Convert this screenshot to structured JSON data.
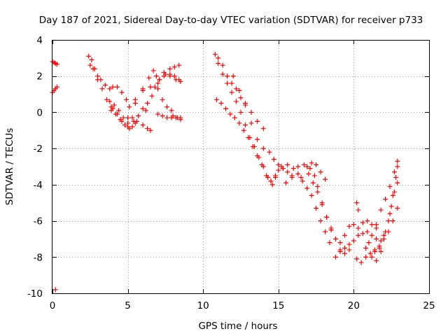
{
  "chart_data": {
    "type": "scatter",
    "title": "Day 187 of 2021, Sidereal Day-to-day VTEC variation (SDTVAR) for receiver p733",
    "xlabel": "GPS time / hours",
    "ylabel": "SDTVAR / TECUs",
    "xlim": [
      0,
      25
    ],
    "ylim": [
      -10,
      4
    ],
    "x_ticks": [
      0,
      5,
      10,
      15,
      20,
      25
    ],
    "y_ticks": [
      -10,
      -8,
      -6,
      -4,
      -2,
      0,
      2,
      4
    ],
    "grid": true,
    "marker": "plus",
    "color": "#ff0000",
    "tracks": [
      [
        [
          0.0,
          2.8
        ],
        [
          0.1,
          2.75
        ],
        [
          0.2,
          2.7
        ],
        [
          0.3,
          2.65
        ]
      ],
      [
        [
          0.0,
          1.1
        ],
        [
          0.1,
          1.2
        ],
        [
          0.2,
          1.3
        ],
        [
          0.3,
          1.4
        ]
      ],
      [
        [
          0.2,
          -9.8
        ]
      ],
      [
        [
          2.4,
          3.1
        ],
        [
          2.6,
          2.9
        ],
        [
          2.8,
          2.4
        ],
        [
          3.0,
          2.0
        ],
        [
          3.2,
          1.8
        ],
        [
          3.5,
          1.5
        ],
        [
          3.8,
          1.3
        ],
        [
          4.0,
          1.4
        ],
        [
          4.3,
          1.4
        ],
        [
          4.6,
          1.1
        ],
        [
          4.9,
          0.7
        ]
      ],
      [
        [
          2.5,
          2.6
        ],
        [
          2.7,
          2.4
        ],
        [
          3.0,
          1.8
        ],
        [
          3.3,
          1.3
        ],
        [
          3.6,
          0.7
        ],
        [
          3.9,
          0.3
        ],
        [
          4.2,
          -0.1
        ],
        [
          4.5,
          -0.4
        ],
        [
          4.8,
          -0.7
        ],
        [
          5.1,
          -0.9
        ],
        [
          5.4,
          -0.5
        ],
        [
          5.7,
          -0.2
        ],
        [
          6.0,
          0.2
        ],
        [
          6.3,
          0.5
        ]
      ],
      [
        [
          3.8,
          0.6
        ],
        [
          4.0,
          0.2
        ],
        [
          4.3,
          -0.1
        ],
        [
          4.6,
          -0.5
        ],
        [
          5.0,
          -0.6
        ],
        [
          5.3,
          -0.3
        ],
        [
          5.6,
          -0.5
        ],
        [
          6.0,
          -0.7
        ],
        [
          6.3,
          -0.9
        ],
        [
          6.5,
          -1.0
        ]
      ],
      [
        [
          3.9,
          0.1
        ],
        [
          4.1,
          0.4
        ],
        [
          4.4,
          0.1
        ],
        [
          4.7,
          -0.3
        ],
        [
          5.0,
          -0.8
        ],
        [
          5.3,
          -0.8
        ],
        [
          5.5,
          -0.6
        ]
      ],
      [
        [
          5.1,
          0.3
        ],
        [
          5.5,
          0.7
        ],
        [
          6.0,
          1.2
        ],
        [
          6.5,
          1.4
        ],
        [
          7.0,
          1.3
        ],
        [
          7.3,
          0.7
        ],
        [
          7.6,
          0.3
        ],
        [
          7.9,
          0.1
        ],
        [
          8.0,
          -0.2
        ],
        [
          8.3,
          -0.3
        ],
        [
          8.5,
          -0.4
        ]
      ],
      [
        [
          5.0,
          -0.3
        ],
        [
          5.5,
          0.5
        ],
        [
          6.0,
          1.3
        ],
        [
          6.4,
          1.9
        ],
        [
          6.7,
          2.3
        ],
        [
          6.9,
          2.0
        ],
        [
          7.1,
          1.8
        ],
        [
          7.4,
          2.0
        ],
        [
          7.8,
          2.1
        ],
        [
          8.1,
          2.0
        ],
        [
          8.4,
          1.8
        ]
      ],
      [
        [
          6.2,
          0.1
        ],
        [
          6.6,
          0.9
        ],
        [
          7.0,
          1.6
        ],
        [
          7.4,
          2.2
        ],
        [
          7.8,
          2.4
        ],
        [
          8.1,
          2.5
        ],
        [
          8.4,
          2.6
        ]
      ],
      [
        [
          6.8,
          1.4
        ],
        [
          7.1,
          1.8
        ],
        [
          7.5,
          2.1
        ],
        [
          7.8,
          2.0
        ],
        [
          8.2,
          1.8
        ],
        [
          8.5,
          1.7
        ]
      ],
      [
        [
          7.0,
          -0.1
        ],
        [
          7.3,
          -0.2
        ],
        [
          7.6,
          -0.3
        ],
        [
          7.9,
          -0.3
        ],
        [
          8.2,
          -0.3
        ],
        [
          8.5,
          -0.3
        ]
      ],
      [
        [
          10.8,
          3.2
        ],
        [
          11.0,
          3.0
        ],
        [
          11.3,
          2.6
        ],
        [
          11.6,
          2.0
        ],
        [
          11.9,
          1.6
        ],
        [
          12.2,
          1.3
        ],
        [
          12.5,
          0.8
        ],
        [
          12.8,
          0.4
        ],
        [
          13.2,
          0.0
        ],
        [
          13.6,
          -0.5
        ],
        [
          14.0,
          -0.9
        ]
      ],
      [
        [
          11.0,
          2.7
        ],
        [
          11.3,
          2.1
        ],
        [
          11.6,
          1.6
        ],
        [
          11.9,
          1.1
        ],
        [
          12.2,
          0.6
        ],
        [
          12.5,
          0.0
        ],
        [
          12.8,
          -0.7
        ],
        [
          13.1,
          -1.4
        ],
        [
          13.4,
          -1.9
        ],
        [
          13.7,
          -2.5
        ],
        [
          14.0,
          -3.0
        ],
        [
          14.3,
          -3.6
        ],
        [
          14.6,
          -4.0
        ]
      ],
      [
        [
          10.9,
          0.7
        ],
        [
          11.2,
          0.5
        ],
        [
          11.5,
          0.2
        ],
        [
          11.8,
          -0.1
        ],
        [
          12.1,
          -0.3
        ],
        [
          12.4,
          -0.6
        ],
        [
          12.7,
          -1.0
        ],
        [
          13.0,
          -1.4
        ],
        [
          13.3,
          -1.9
        ],
        [
          13.6,
          -2.4
        ],
        [
          13.9,
          -2.9
        ],
        [
          14.2,
          -3.5
        ],
        [
          14.5,
          -3.8
        ],
        [
          14.8,
          -3.5
        ],
        [
          15.0,
          -3.2
        ],
        [
          15.3,
          -3.1
        ],
        [
          15.6,
          -3.3
        ],
        [
          15.9,
          -3.6
        ]
      ],
      [
        [
          12.0,
          2.0
        ],
        [
          12.4,
          1.2
        ],
        [
          12.8,
          0.5
        ],
        [
          13.2,
          -0.6
        ],
        [
          13.6,
          -1.5
        ],
        [
          14.0,
          -2.0
        ],
        [
          14.4,
          -2.2
        ],
        [
          14.7,
          -2.6
        ],
        [
          15.0,
          -2.9
        ],
        [
          15.3,
          -3.1
        ]
      ],
      [
        [
          14.5,
          -3.8
        ],
        [
          14.8,
          -3.6
        ],
        [
          15.2,
          -3.0
        ],
        [
          15.6,
          -2.9
        ],
        [
          16.0,
          -3.1
        ],
        [
          16.3,
          -3.4
        ],
        [
          16.6,
          -3.8
        ],
        [
          16.9,
          -4.2
        ],
        [
          17.2,
          -4.6
        ],
        [
          17.5,
          -5.3
        ],
        [
          17.8,
          -6.0
        ],
        [
          18.1,
          -6.6
        ],
        [
          18.4,
          -7.2
        ]
      ],
      [
        [
          15.5,
          -3.9
        ],
        [
          15.9,
          -3.5
        ],
        [
          16.3,
          -3.0
        ],
        [
          16.7,
          -2.9
        ],
        [
          17.1,
          -3.1
        ],
        [
          17.4,
          -3.5
        ],
        [
          17.6,
          -4.1
        ],
        [
          17.9,
          -5.0
        ],
        [
          18.2,
          -5.8
        ],
        [
          18.5,
          -6.5
        ],
        [
          18.8,
          -7.0
        ],
        [
          19.1,
          -7.6
        ],
        [
          19.4,
          -7.8
        ],
        [
          19.7,
          -7.6
        ]
      ],
      [
        [
          16.5,
          -3.6
        ],
        [
          16.9,
          -3.0
        ],
        [
          17.2,
          -2.8
        ],
        [
          17.5,
          -2.9
        ],
        [
          17.8,
          -3.3
        ],
        [
          18.1,
          -3.7
        ]
      ],
      [
        [
          17.0,
          -3.4
        ],
        [
          17.3,
          -3.9
        ],
        [
          17.6,
          -4.4
        ],
        [
          17.9,
          -5.1
        ],
        [
          18.2,
          -5.8
        ],
        [
          18.5,
          -6.4
        ],
        [
          18.8,
          -7.0
        ],
        [
          19.1,
          -7.2
        ],
        [
          19.4,
          -6.8
        ],
        [
          19.7,
          -6.3
        ],
        [
          20.0,
          -6.2
        ],
        [
          20.3,
          -6.4
        ],
        [
          20.6,
          -6.1
        ],
        [
          20.9,
          -6.0
        ],
        [
          21.2,
          -6.2
        ],
        [
          21.5,
          -6.4
        ]
      ],
      [
        [
          18.8,
          -8.0
        ],
        [
          19.1,
          -7.7
        ],
        [
          19.4,
          -7.5
        ],
        [
          19.7,
          -7.3
        ],
        [
          20.0,
          -7.1
        ],
        [
          20.3,
          -6.8
        ],
        [
          20.6,
          -6.7
        ],
        [
          20.9,
          -6.6
        ],
        [
          21.2,
          -6.8
        ],
        [
          21.5,
          -7.0
        ],
        [
          21.8,
          -7.1
        ]
      ],
      [
        [
          20.2,
          -8.1
        ],
        [
          20.5,
          -8.3
        ],
        [
          20.8,
          -8.0
        ],
        [
          21.1,
          -7.8
        ],
        [
          21.4,
          -7.7
        ],
        [
          21.7,
          -7.5
        ],
        [
          22.0,
          -7.0
        ],
        [
          22.3,
          -6.6
        ],
        [
          22.6,
          -6.0
        ],
        [
          22.9,
          -5.3
        ]
      ],
      [
        [
          20.2,
          -5.0
        ],
        [
          20.3,
          -5.4
        ]
      ],
      [
        [
          20.8,
          -7.5
        ],
        [
          21.2,
          -8.0
        ],
        [
          21.5,
          -8.2
        ],
        [
          21.8,
          -7.7
        ],
        [
          22.1,
          -6.6
        ],
        [
          22.4,
          -5.6
        ],
        [
          22.6,
          -4.6
        ],
        [
          22.8,
          -3.6
        ],
        [
          22.9,
          -3.0
        ]
      ],
      [
        [
          21.5,
          -6.2
        ],
        [
          21.8,
          -5.4
        ],
        [
          22.1,
          -4.8
        ],
        [
          22.4,
          -4.1
        ],
        [
          22.7,
          -3.3
        ],
        [
          22.9,
          -2.7
        ]
      ],
      [
        [
          21.0,
          -7.2
        ],
        [
          21.4,
          -7.6
        ],
        [
          21.7,
          -7.4
        ],
        [
          22.0,
          -6.8
        ],
        [
          22.3,
          -6.0
        ],
        [
          22.5,
          -5.2
        ],
        [
          22.7,
          -4.4
        ],
        [
          22.9,
          -3.9
        ]
      ]
    ]
  }
}
